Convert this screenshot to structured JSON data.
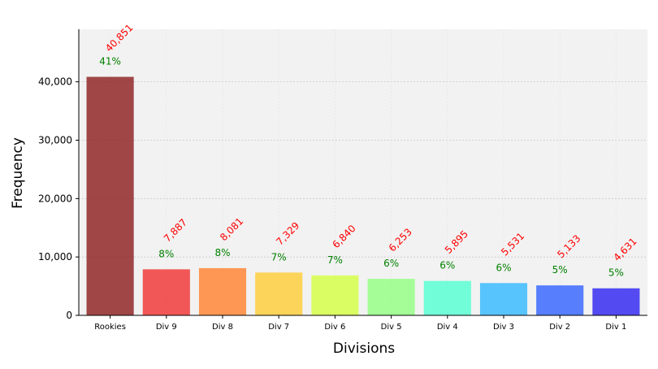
{
  "chart_data": {
    "type": "bar",
    "title": "",
    "xlabel": "Divisions",
    "ylabel": "Frequency",
    "categories": [
      "Rookies",
      "Div 9",
      "Div 8",
      "Div 7",
      "Div 6",
      "Div 5",
      "Div 4",
      "Div 3",
      "Div 2",
      "Div 1"
    ],
    "values": [
      40851,
      7887,
      8081,
      7329,
      6840,
      6253,
      5895,
      5531,
      5133,
      4631
    ],
    "value_labels": [
      "40,851",
      "7,887",
      "8,081",
      "7,329",
      "6,840",
      "6,253",
      "5,895",
      "5,531",
      "5,133",
      "4,631"
    ],
    "percent_labels": [
      "41%",
      "8%",
      "8%",
      "7%",
      "7%",
      "6%",
      "6%",
      "6%",
      "5%",
      "5%"
    ],
    "yticks": [
      0,
      10000,
      20000,
      30000,
      40000
    ],
    "ytick_labels": [
      "0",
      "10,000",
      "20,000",
      "30,000",
      "40,000"
    ],
    "ylim": [
      0,
      49000
    ],
    "grid": true,
    "colors": {
      "bars": [
        "#8b1a1a",
        "#f03030",
        "#ff7f2a",
        "#ffcc33",
        "#d4ff40",
        "#90ff80",
        "#50ffd0",
        "#30b8ff",
        "#3060ff",
        "#2a20f0"
      ],
      "value_label": "#ff0000",
      "percent_label": "#008000",
      "plot_background": "#f2f2f2",
      "grid": "#c8c8c8"
    }
  }
}
